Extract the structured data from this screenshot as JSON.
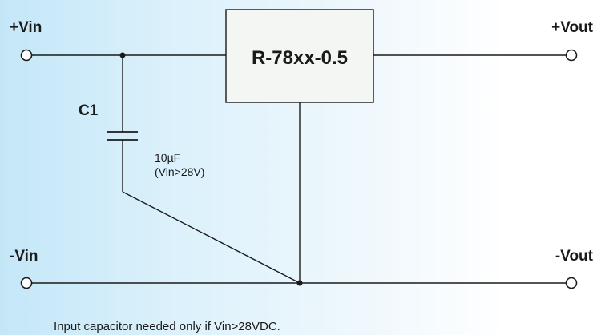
{
  "terminals": {
    "vin_plus": "+Vin",
    "vin_minus": "-Vin",
    "vout_plus": "+Vout",
    "vout_minus": "-Vout"
  },
  "regulator": {
    "label": "R-78xx-0.5"
  },
  "capacitor": {
    "designator": "C1",
    "value": "10µF",
    "condition": "(Vin>28V)"
  },
  "footnote": "Input capacitor needed only if Vin>28VDC."
}
